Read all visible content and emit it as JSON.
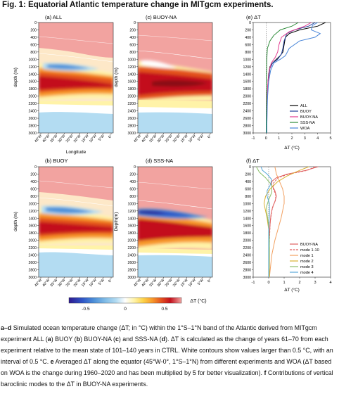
{
  "figure": {
    "title": "Fig. 1: Equatorial Atlantic temperature change in MITgcm experiments."
  },
  "panels": [
    {
      "id": "a",
      "label": "(a) ALL"
    },
    {
      "id": "c",
      "label": "(c) BUOY-NA"
    },
    {
      "id": "b",
      "label": "(b) BUOY"
    },
    {
      "id": "d",
      "label": "(d) SSS-NA"
    }
  ],
  "map_axes": {
    "ylabel_a": "depth (m)",
    "ylabel_c": "depth (m)",
    "ylabel_b": "depth (m)",
    "ylabel_d": "Depth(m)",
    "xlabel": "Longitude",
    "depth_ticks": [
      "0",
      "200",
      "400",
      "600",
      "800",
      "1000",
      "1200",
      "1400",
      "1600",
      "1800",
      "2000",
      "2200",
      "2400",
      "2600",
      "2800",
      "3000"
    ],
    "lon_ticks": [
      "45°W",
      "40°W",
      "35°W",
      "30°W",
      "25°W",
      "20°W",
      "15°W",
      "10°W",
      "5°W",
      "0°"
    ]
  },
  "colorbar": {
    "ticks": [
      "-0.5",
      "0",
      "0.5"
    ],
    "label": "ΔT (°C)",
    "colors": [
      "#2e1a8f",
      "#2f56c7",
      "#4c8fd8",
      "#7fbbe6",
      "#b3dcf2",
      "#ffffff",
      "#fff3a8",
      "#fdd34a",
      "#f89a2b",
      "#e4521f",
      "#c3101c",
      "#f2a3a0"
    ]
  },
  "chart_data": [
    {
      "type": "line",
      "panel": "e",
      "title": "(e) ΔT",
      "xlabel": "ΔT (°C)",
      "ylabel": "",
      "xlim": [
        -1,
        5
      ],
      "ylim": [
        3000,
        0
      ],
      "xticks": [
        "-1",
        "0",
        "1",
        "2",
        "3",
        "4",
        "5"
      ],
      "legend_position": "lower-right",
      "series": [
        {
          "name": "ALL",
          "color": "#000000",
          "points": [
            [
              4.6,
              0
            ],
            [
              4.0,
              100
            ],
            [
              2.6,
              200
            ],
            [
              1.8,
              300
            ],
            [
              1.5,
              400
            ],
            [
              1.4,
              600
            ],
            [
              1.3,
              800
            ],
            [
              1.1,
              900
            ],
            [
              0.8,
              1000
            ],
            [
              0.5,
              1100
            ],
            [
              0.3,
              1200
            ],
            [
              0.2,
              1400
            ],
            [
              0.15,
              1600
            ],
            [
              0.1,
              2000
            ],
            [
              0.06,
              2400
            ],
            [
              0.04,
              3000
            ]
          ]
        },
        {
          "name": "BUOY",
          "color": "#1f3f9a",
          "points": [
            [
              3.8,
              0
            ],
            [
              3.3,
              100
            ],
            [
              2.2,
              200
            ],
            [
              1.6,
              300
            ],
            [
              1.4,
              500
            ],
            [
              1.3,
              700
            ],
            [
              1.2,
              850
            ],
            [
              0.9,
              1000
            ],
            [
              0.5,
              1100
            ],
            [
              0.3,
              1250
            ],
            [
              0.2,
              1500
            ],
            [
              0.12,
              1800
            ],
            [
              0.08,
              2200
            ],
            [
              0.05,
              3000
            ]
          ]
        },
        {
          "name": "BUOY-NA",
          "color": "#e23b8f",
          "points": [
            [
              3.5,
              0
            ],
            [
              3.0,
              100
            ],
            [
              1.8,
              250
            ],
            [
              1.2,
              400
            ],
            [
              1.0,
              600
            ],
            [
              0.9,
              800
            ],
            [
              0.7,
              950
            ],
            [
              0.4,
              1100
            ],
            [
              0.25,
              1300
            ],
            [
              0.15,
              1600
            ],
            [
              0.08,
              2000
            ],
            [
              0.04,
              3000
            ]
          ]
        },
        {
          "name": "SSS-NA",
          "color": "#2e8b3a",
          "points": [
            [
              2.5,
              0
            ],
            [
              2.0,
              100
            ],
            [
              1.1,
              200
            ],
            [
              0.6,
              350
            ],
            [
              0.3,
              500
            ],
            [
              0.1,
              700
            ],
            [
              0.05,
              1000
            ],
            [
              0.03,
              1400
            ],
            [
              0.02,
              2000
            ],
            [
              0.01,
              3000
            ]
          ]
        },
        {
          "name": "WOA",
          "color": "#4a86d8",
          "points": [
            [
              4.0,
              0
            ],
            [
              3.6,
              80
            ],
            [
              3.5,
              200
            ],
            [
              4.2,
              300
            ],
            [
              3.8,
              400
            ],
            [
              2.6,
              500
            ],
            [
              1.8,
              700
            ],
            [
              1.5,
              900
            ],
            [
              1.1,
              1000
            ],
            [
              0.6,
              1100
            ],
            [
              0.35,
              1300
            ],
            [
              0.2,
              1600
            ],
            [
              0.12,
              2000
            ],
            [
              0.08,
              2400
            ],
            [
              0.05,
              3000
            ]
          ]
        }
      ]
    },
    {
      "type": "line",
      "panel": "f",
      "title": "(f) ΔT",
      "xlabel": "ΔT (°C)",
      "ylabel": "",
      "xlim": [
        -1,
        4
      ],
      "ylim": [
        3000,
        0
      ],
      "xticks": [
        "-1",
        "0",
        "1",
        "2",
        "3",
        "4"
      ],
      "legend_position": "lower-right",
      "series": [
        {
          "name": "BUOY-NA",
          "color": "#e06060",
          "dashed": false,
          "points": [
            [
              3.2,
              0
            ],
            [
              2.4,
              100
            ],
            [
              1.2,
              200
            ],
            [
              0.5,
              300
            ],
            [
              0.2,
              400
            ],
            [
              0.2,
              500
            ],
            [
              0.4,
              650
            ],
            [
              0.5,
              800
            ],
            [
              0.4,
              950
            ],
            [
              0.25,
              1100
            ],
            [
              0.15,
              1300
            ],
            [
              0.08,
              1600
            ],
            [
              0.04,
              2000
            ],
            [
              0.02,
              3000
            ]
          ]
        },
        {
          "name": "mode 1-10",
          "color": "#e06060",
          "dashed": true,
          "points": [
            [
              3.0,
              0
            ],
            [
              2.5,
              100
            ],
            [
              1.3,
              200
            ],
            [
              0.6,
              300
            ],
            [
              0.3,
              450
            ],
            [
              0.3,
              600
            ],
            [
              0.45,
              750
            ],
            [
              0.45,
              900
            ],
            [
              0.3,
              1050
            ],
            [
              0.2,
              1200
            ],
            [
              0.1,
              1500
            ],
            [
              0.05,
              2000
            ],
            [
              0.02,
              3000
            ]
          ]
        },
        {
          "name": "mode 1",
          "color": "#f2a060",
          "dashed": false,
          "points": [
            [
              0.4,
              0
            ],
            [
              0.5,
              200
            ],
            [
              0.7,
              400
            ],
            [
              0.9,
              600
            ],
            [
              1.0,
              800
            ],
            [
              1.0,
              1000
            ],
            [
              0.9,
              1200
            ],
            [
              0.8,
              1400
            ],
            [
              0.6,
              1700
            ],
            [
              0.4,
              2000
            ],
            [
              0.2,
              2400
            ],
            [
              0.05,
              3000
            ]
          ]
        },
        {
          "name": "mode 2",
          "color": "#d9b032",
          "dashed": false,
          "points": [
            [
              2.6,
              0
            ],
            [
              2.0,
              100
            ],
            [
              1.2,
              250
            ],
            [
              0.6,
              400
            ],
            [
              0.1,
              600
            ],
            [
              -0.2,
              800
            ],
            [
              -0.3,
              1000
            ],
            [
              -0.2,
              1200
            ],
            [
              -0.1,
              1400
            ],
            [
              0.0,
              1700
            ],
            [
              0.05,
              2200
            ],
            [
              0.05,
              3000
            ]
          ]
        },
        {
          "name": "mode 3",
          "color": "#8cbf6a",
          "dashed": false,
          "points": [
            [
              -0.8,
              0
            ],
            [
              -0.6,
              150
            ],
            [
              -0.2,
              300
            ],
            [
              0.2,
              500
            ],
            [
              0.2,
              700
            ],
            [
              0.0,
              900
            ],
            [
              -0.15,
              1100
            ],
            [
              -0.1,
              1300
            ],
            [
              0.0,
              1600
            ],
            [
              0.05,
              2000
            ],
            [
              0.02,
              3000
            ]
          ]
        },
        {
          "name": "mode 4",
          "color": "#5aa8d8",
          "dashed": false,
          "points": [
            [
              -0.5,
              0
            ],
            [
              -0.4,
              100
            ],
            [
              -0.1,
              200
            ],
            [
              0.2,
              350
            ],
            [
              0.1,
              500
            ],
            [
              -0.1,
              650
            ],
            [
              -0.1,
              800
            ],
            [
              0.05,
              1000
            ],
            [
              0.05,
              1300
            ],
            [
              0.0,
              1700
            ],
            [
              0.0,
              3000
            ]
          ]
        }
      ]
    }
  ],
  "caption": {
    "p1_bold": "a–d",
    "p1_t1": " Simulated ocean temperature change (ΔT; in °C) within the 1°S–1°N band of the Atlantic derived from MITgcm experiment ALL (",
    "a": "a",
    "p1_t2": ") BUOY (",
    "b": "b",
    "p1_t3": ") BUOY-NA (",
    "c": "c",
    "p1_t4": ") and SSS-NA (",
    "d": "d",
    "p1_t5": "). ΔT is calculated as the change of years 61–70 from each experiment relative to the mean state of 101–140 years in CTRL. White contours show values larger than 0.5 °C, with an interval of 0.5 °C. ",
    "e": "e",
    "p1_t6": " Averaged ΔT along the equator (45°W-0°, 1°S–1°N) from different experiments and WOA (ΔT based on WOA is the change during 1960–2020 and has been multiplied by 5 for better visualization). ",
    "f": "f",
    "p1_t7": " Contributions of vertical baroclinic modes to the ΔT in BUOY-NA experiments."
  }
}
